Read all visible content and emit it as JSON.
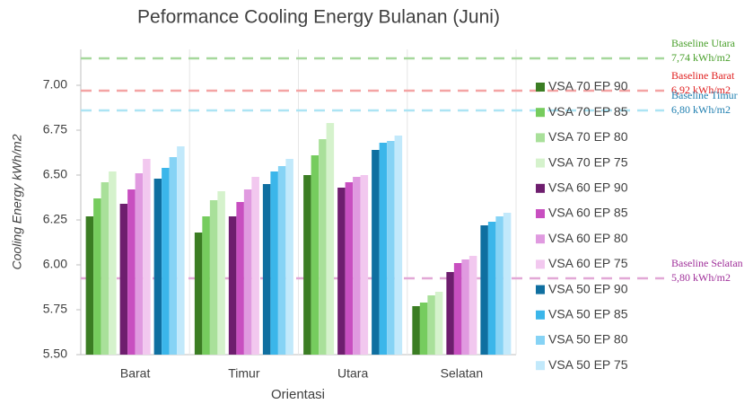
{
  "chart_data": {
    "type": "bar",
    "title": "Peformance Cooling Energy Bulanan (Juni)",
    "x_label": "Orientasi",
    "y_label": "Cooling Energy kWh/m2",
    "categories": [
      "Barat",
      "Timur",
      "Utara",
      "Selatan"
    ],
    "ylim": [
      5.5,
      7.2
    ],
    "yticks": [
      {
        "value": 5.5,
        "label": "5.50"
      },
      {
        "value": 5.75,
        "label": "5.75"
      },
      {
        "value": 6,
        "label": "6.00"
      },
      {
        "value": 6.25,
        "label": "6.25"
      },
      {
        "value": 6.5,
        "label": "6.50"
      },
      {
        "value": 6.75,
        "label": "6.75"
      },
      {
        "value": 7,
        "label": "7.00"
      }
    ],
    "grid": false,
    "series": [
      {
        "name": "VSA 70 EP 90",
        "color": "#3b7d23",
        "values": [
          6.27,
          6.18,
          6.5,
          5.77
        ]
      },
      {
        "name": "VSA 70 EP 85",
        "color": "#76cc5e",
        "values": [
          6.37,
          6.27,
          6.61,
          5.79
        ]
      },
      {
        "name": "VSA 70 EP 80",
        "color": "#a9e09a",
        "values": [
          6.46,
          6.36,
          6.7,
          5.83
        ]
      },
      {
        "name": "VSA 70 EP 75",
        "color": "#d5f2cc",
        "values": [
          6.52,
          6.41,
          6.79,
          5.85
        ]
      },
      {
        "name": "VSA 60 EP 90",
        "color": "#6e1e6e",
        "values": [
          6.34,
          6.27,
          6.43,
          5.96
        ]
      },
      {
        "name": "VSA 60 EP 85",
        "color": "#c84fc0",
        "values": [
          6.42,
          6.35,
          6.46,
          6.01
        ]
      },
      {
        "name": "VSA 60 EP 80",
        "color": "#e09ae0",
        "values": [
          6.51,
          6.42,
          6.49,
          6.03
        ]
      },
      {
        "name": "VSA 60 EP 75",
        "color": "#f2c8ef",
        "values": [
          6.59,
          6.49,
          6.5,
          6.05
        ]
      },
      {
        "name": "VSA 50 EP 90",
        "color": "#0f6fa0",
        "values": [
          6.48,
          6.45,
          6.64,
          6.22
        ]
      },
      {
        "name": "VSA 50 EP 85",
        "color": "#3bb6ea",
        "values": [
          6.54,
          6.52,
          6.68,
          6.24
        ]
      },
      {
        "name": "VSA 50 EP 80",
        "color": "#86d3f5",
        "values": [
          6.6,
          6.55,
          6.69,
          6.27
        ]
      },
      {
        "name": "VSA 50 EP 75",
        "color": "#c2e9fb",
        "values": [
          6.66,
          6.59,
          6.72,
          6.29
        ]
      }
    ],
    "annotations": [
      {
        "text": "Baseline Utara",
        "value_text": "7,74 kWh/m2",
        "y": 7.15,
        "color": "#4aa02c",
        "line_color": "#a6d89c"
      },
      {
        "text": "Baseline Barat",
        "value_text": "6,92 kWh/m2",
        "y": 6.97,
        "color": "#e02020",
        "line_color": "#f4a4a4"
      },
      {
        "text": "Baseline Timur",
        "value_text": "6,80 kWh/m2",
        "y": 6.86,
        "color": "#1f7fb0",
        "line_color": "#ace4f4"
      },
      {
        "text": "Baseline Selatan",
        "value_text": "5,80 kWh/m2",
        "y": 5.925,
        "color": "#a0309a",
        "line_color": "#e2a8d6"
      }
    ]
  }
}
